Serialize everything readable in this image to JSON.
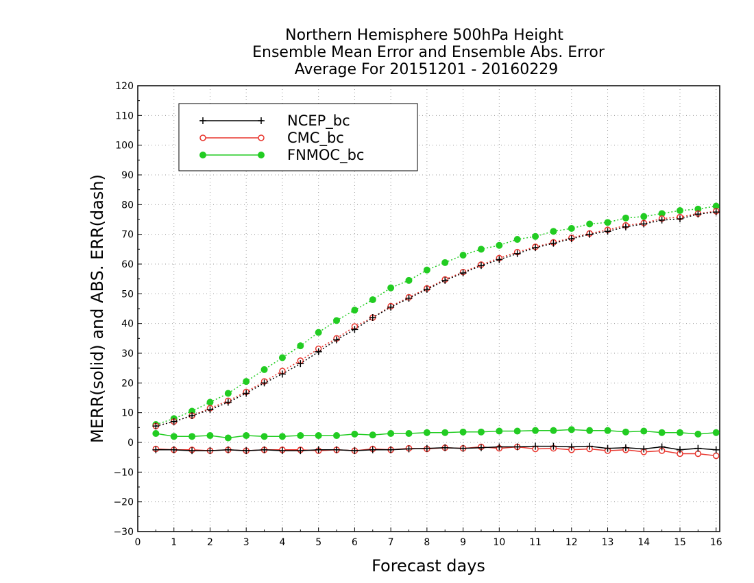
{
  "chart_data": {
    "type": "line",
    "title": [
      "Northern Hemisphere 500hPa Height",
      "Ensemble Mean Error and Ensemble Abs. Error",
      "Average For 20151201 - 20160229"
    ],
    "xlabel": "Forecast days",
    "ylabel": "MERR(solid) and ABS. ERR(dash)",
    "xlim": [
      0,
      16.1
    ],
    "ylim": [
      -30,
      120
    ],
    "xticks": [
      0,
      1,
      2,
      3,
      4,
      5,
      6,
      7,
      8,
      9,
      10,
      11,
      12,
      13,
      14,
      15,
      16
    ],
    "yticks": [
      -30,
      -20,
      -10,
      0,
      10,
      20,
      30,
      40,
      50,
      60,
      70,
      80,
      90,
      100,
      110,
      120
    ],
    "grid": true,
    "legend_position": "top-left",
    "x": [
      0.5,
      1,
      1.5,
      2,
      2.5,
      3,
      3.5,
      4,
      4.5,
      5,
      5.5,
      6,
      6.5,
      7,
      7.5,
      8,
      8.5,
      9,
      9.5,
      10,
      10.5,
      11,
      11.5,
      12,
      12.5,
      13,
      13.5,
      14,
      14.5,
      15,
      15.5,
      16
    ],
    "series": [
      {
        "name": "NCEP_bc",
        "color": "#000000",
        "marker": "plus",
        "merr": [
          -2.5,
          -2.5,
          -2.8,
          -2.8,
          -2.5,
          -2.8,
          -2.5,
          -2.8,
          -2.8,
          -2.5,
          -2.5,
          -2.8,
          -2.5,
          -2.5,
          -2.2,
          -2.0,
          -1.8,
          -2.0,
          -1.8,
          -1.5,
          -1.5,
          -1.3,
          -1.3,
          -1.5,
          -1.3,
          -2.0,
          -1.8,
          -2.2,
          -1.5,
          -2.5,
          -2.0,
          -2.5
        ],
        "abserr": [
          5.5,
          7.0,
          9.0,
          11.0,
          13.5,
          16.5,
          20.0,
          23.0,
          26.5,
          30.5,
          34.5,
          38.0,
          42.0,
          45.5,
          48.5,
          51.5,
          54.5,
          57.0,
          59.5,
          61.5,
          63.5,
          65.5,
          67.0,
          68.5,
          70.0,
          71.0,
          72.5,
          73.5,
          74.8,
          75.2,
          76.8,
          77.5
        ]
      },
      {
        "name": "CMC_bc",
        "color": "#e8342c",
        "marker": "open-circle",
        "merr": [
          -2.2,
          -2.5,
          -2.5,
          -2.8,
          -2.5,
          -2.8,
          -2.5,
          -2.5,
          -2.5,
          -2.8,
          -2.5,
          -2.8,
          -2.2,
          -2.5,
          -2.0,
          -2.2,
          -1.8,
          -2.0,
          -1.5,
          -2.0,
          -1.5,
          -2.2,
          -2.0,
          -2.5,
          -2.2,
          -2.8,
          -2.5,
          -3.2,
          -2.8,
          -3.8,
          -3.8,
          -4.5
        ],
        "abserr": [
          5.5,
          7.0,
          9.0,
          11.5,
          14.0,
          17.0,
          20.5,
          24.0,
          27.5,
          31.5,
          35.0,
          39.0,
          42.0,
          45.8,
          48.8,
          51.8,
          54.8,
          57.3,
          59.8,
          62.0,
          64.0,
          65.8,
          67.3,
          68.8,
          70.3,
          71.5,
          73.0,
          73.8,
          75.3,
          75.8,
          77.0,
          77.8
        ]
      },
      {
        "name": "FNMOC_bc",
        "color": "#22cc22",
        "marker": "filled-circle",
        "merr": [
          3.0,
          2.0,
          2.0,
          2.3,
          1.5,
          2.3,
          2.0,
          2.0,
          2.3,
          2.3,
          2.3,
          2.8,
          2.5,
          3.0,
          3.0,
          3.3,
          3.3,
          3.5,
          3.5,
          3.8,
          3.8,
          4.0,
          4.0,
          4.3,
          4.0,
          4.0,
          3.5,
          3.8,
          3.3,
          3.3,
          2.8,
          3.3
        ],
        "abserr": [
          6.0,
          8.0,
          10.5,
          13.5,
          16.5,
          20.5,
          24.5,
          28.5,
          32.5,
          37.0,
          41.0,
          44.5,
          48.0,
          52.0,
          54.5,
          58.0,
          60.5,
          63.0,
          65.0,
          66.3,
          68.3,
          69.3,
          71.0,
          72.0,
          73.5,
          74.0,
          75.5,
          76.0,
          77.0,
          78.0,
          78.5,
          79.5
        ]
      }
    ]
  }
}
